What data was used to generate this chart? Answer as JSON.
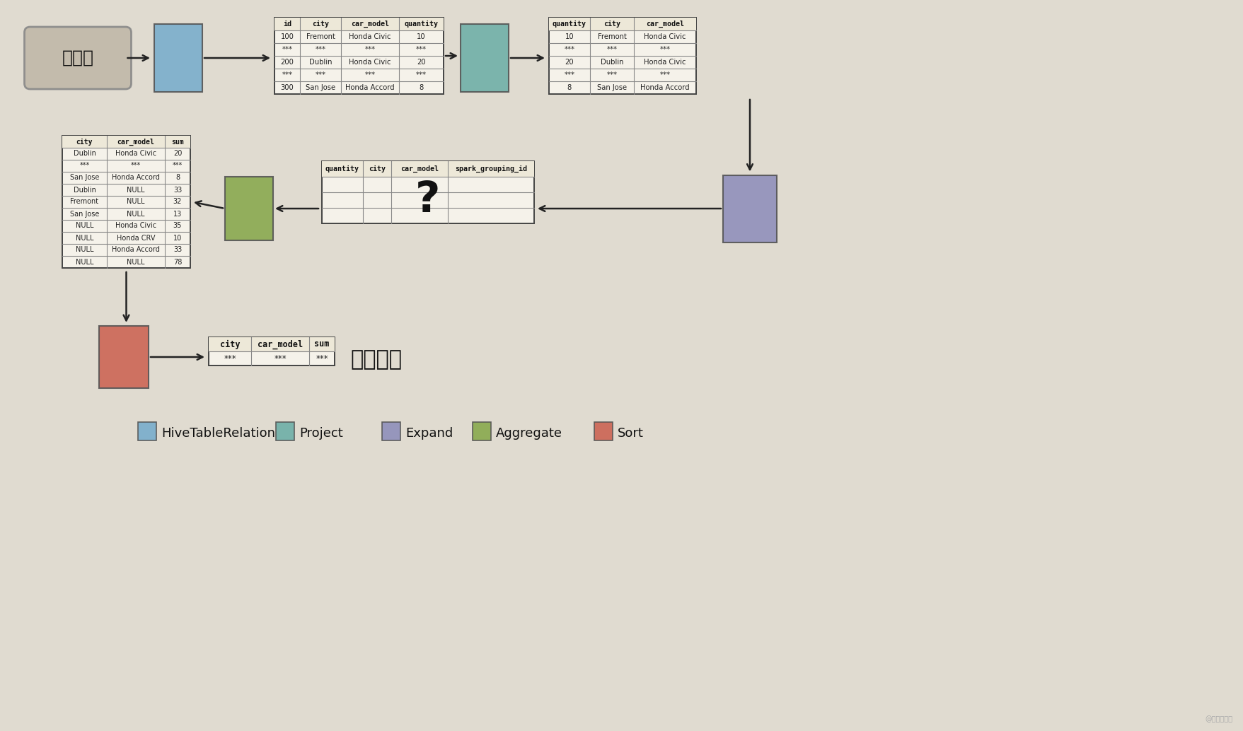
{
  "bg_color": "#e0dbd0",
  "datasource_label": "数据源",
  "datasource_box_color": "#c0b8a8",
  "hive_color": "#7aaecc",
  "project_color": "#70b0a8",
  "expand_color": "#9090bb",
  "aggregate_color": "#8aaa50",
  "sort_color": "#cc6655",
  "table1_headers": [
    "id",
    "city",
    "car_model",
    "quantity"
  ],
  "table1_rows": [
    [
      "100",
      "Fremont",
      "Honda Civic",
      "10"
    ],
    [
      "***",
      "***",
      "***",
      "***"
    ],
    [
      "200",
      "Dublin",
      "Honda Civic",
      "20"
    ],
    [
      "***",
      "***",
      "***",
      "***"
    ],
    [
      "300",
      "San Jose",
      "Honda Accord",
      "8"
    ]
  ],
  "table2_headers": [
    "quantity",
    "city",
    "car_model"
  ],
  "table2_rows": [
    [
      "10",
      "Fremont",
      "Honda Civic"
    ],
    [
      "***",
      "***",
      "***"
    ],
    [
      "20",
      "Dublin",
      "Honda Civic"
    ],
    [
      "***",
      "***",
      "***"
    ],
    [
      "8",
      "San Jose",
      "Honda Accord"
    ]
  ],
  "table3_headers": [
    "quantity",
    "city",
    "car_model",
    "spark_grouping_id"
  ],
  "table4_headers": [
    "city",
    "car_model",
    "sum"
  ],
  "table4_rows": [
    [
      "Dublin",
      "Honda Civic",
      "20"
    ],
    [
      "***",
      "***",
      "***"
    ],
    [
      "San Jose",
      "Honda Accord",
      "8"
    ],
    [
      "Dublin",
      "NULL",
      "33"
    ],
    [
      "Fremont",
      "NULL",
      "32"
    ],
    [
      "San Jose",
      "NULL",
      "13"
    ],
    [
      "NULL",
      "Honda Civic",
      "35"
    ],
    [
      "NULL",
      "Honda CRV",
      "10"
    ],
    [
      "NULL",
      "Honda Accord",
      "33"
    ],
    [
      "NULL",
      "NULL",
      "78"
    ]
  ],
  "table5_headers": [
    "city",
    "car_model",
    "sum"
  ],
  "table5_rows": [
    [
      "***",
      "***",
      "***"
    ]
  ],
  "final_label": "最终结果",
  "legend_items": [
    {
      "label": "HiveTableRelation",
      "color": "#7aaecc"
    },
    {
      "label": "Project",
      "color": "#70b0a8"
    },
    {
      "label": "Expand",
      "color": "#9090bb"
    },
    {
      "label": "Aggregate",
      "color": "#8aaa50"
    },
    {
      "label": "Sort",
      "color": "#cc6655"
    }
  ],
  "watermark": "@云间小弹弹"
}
